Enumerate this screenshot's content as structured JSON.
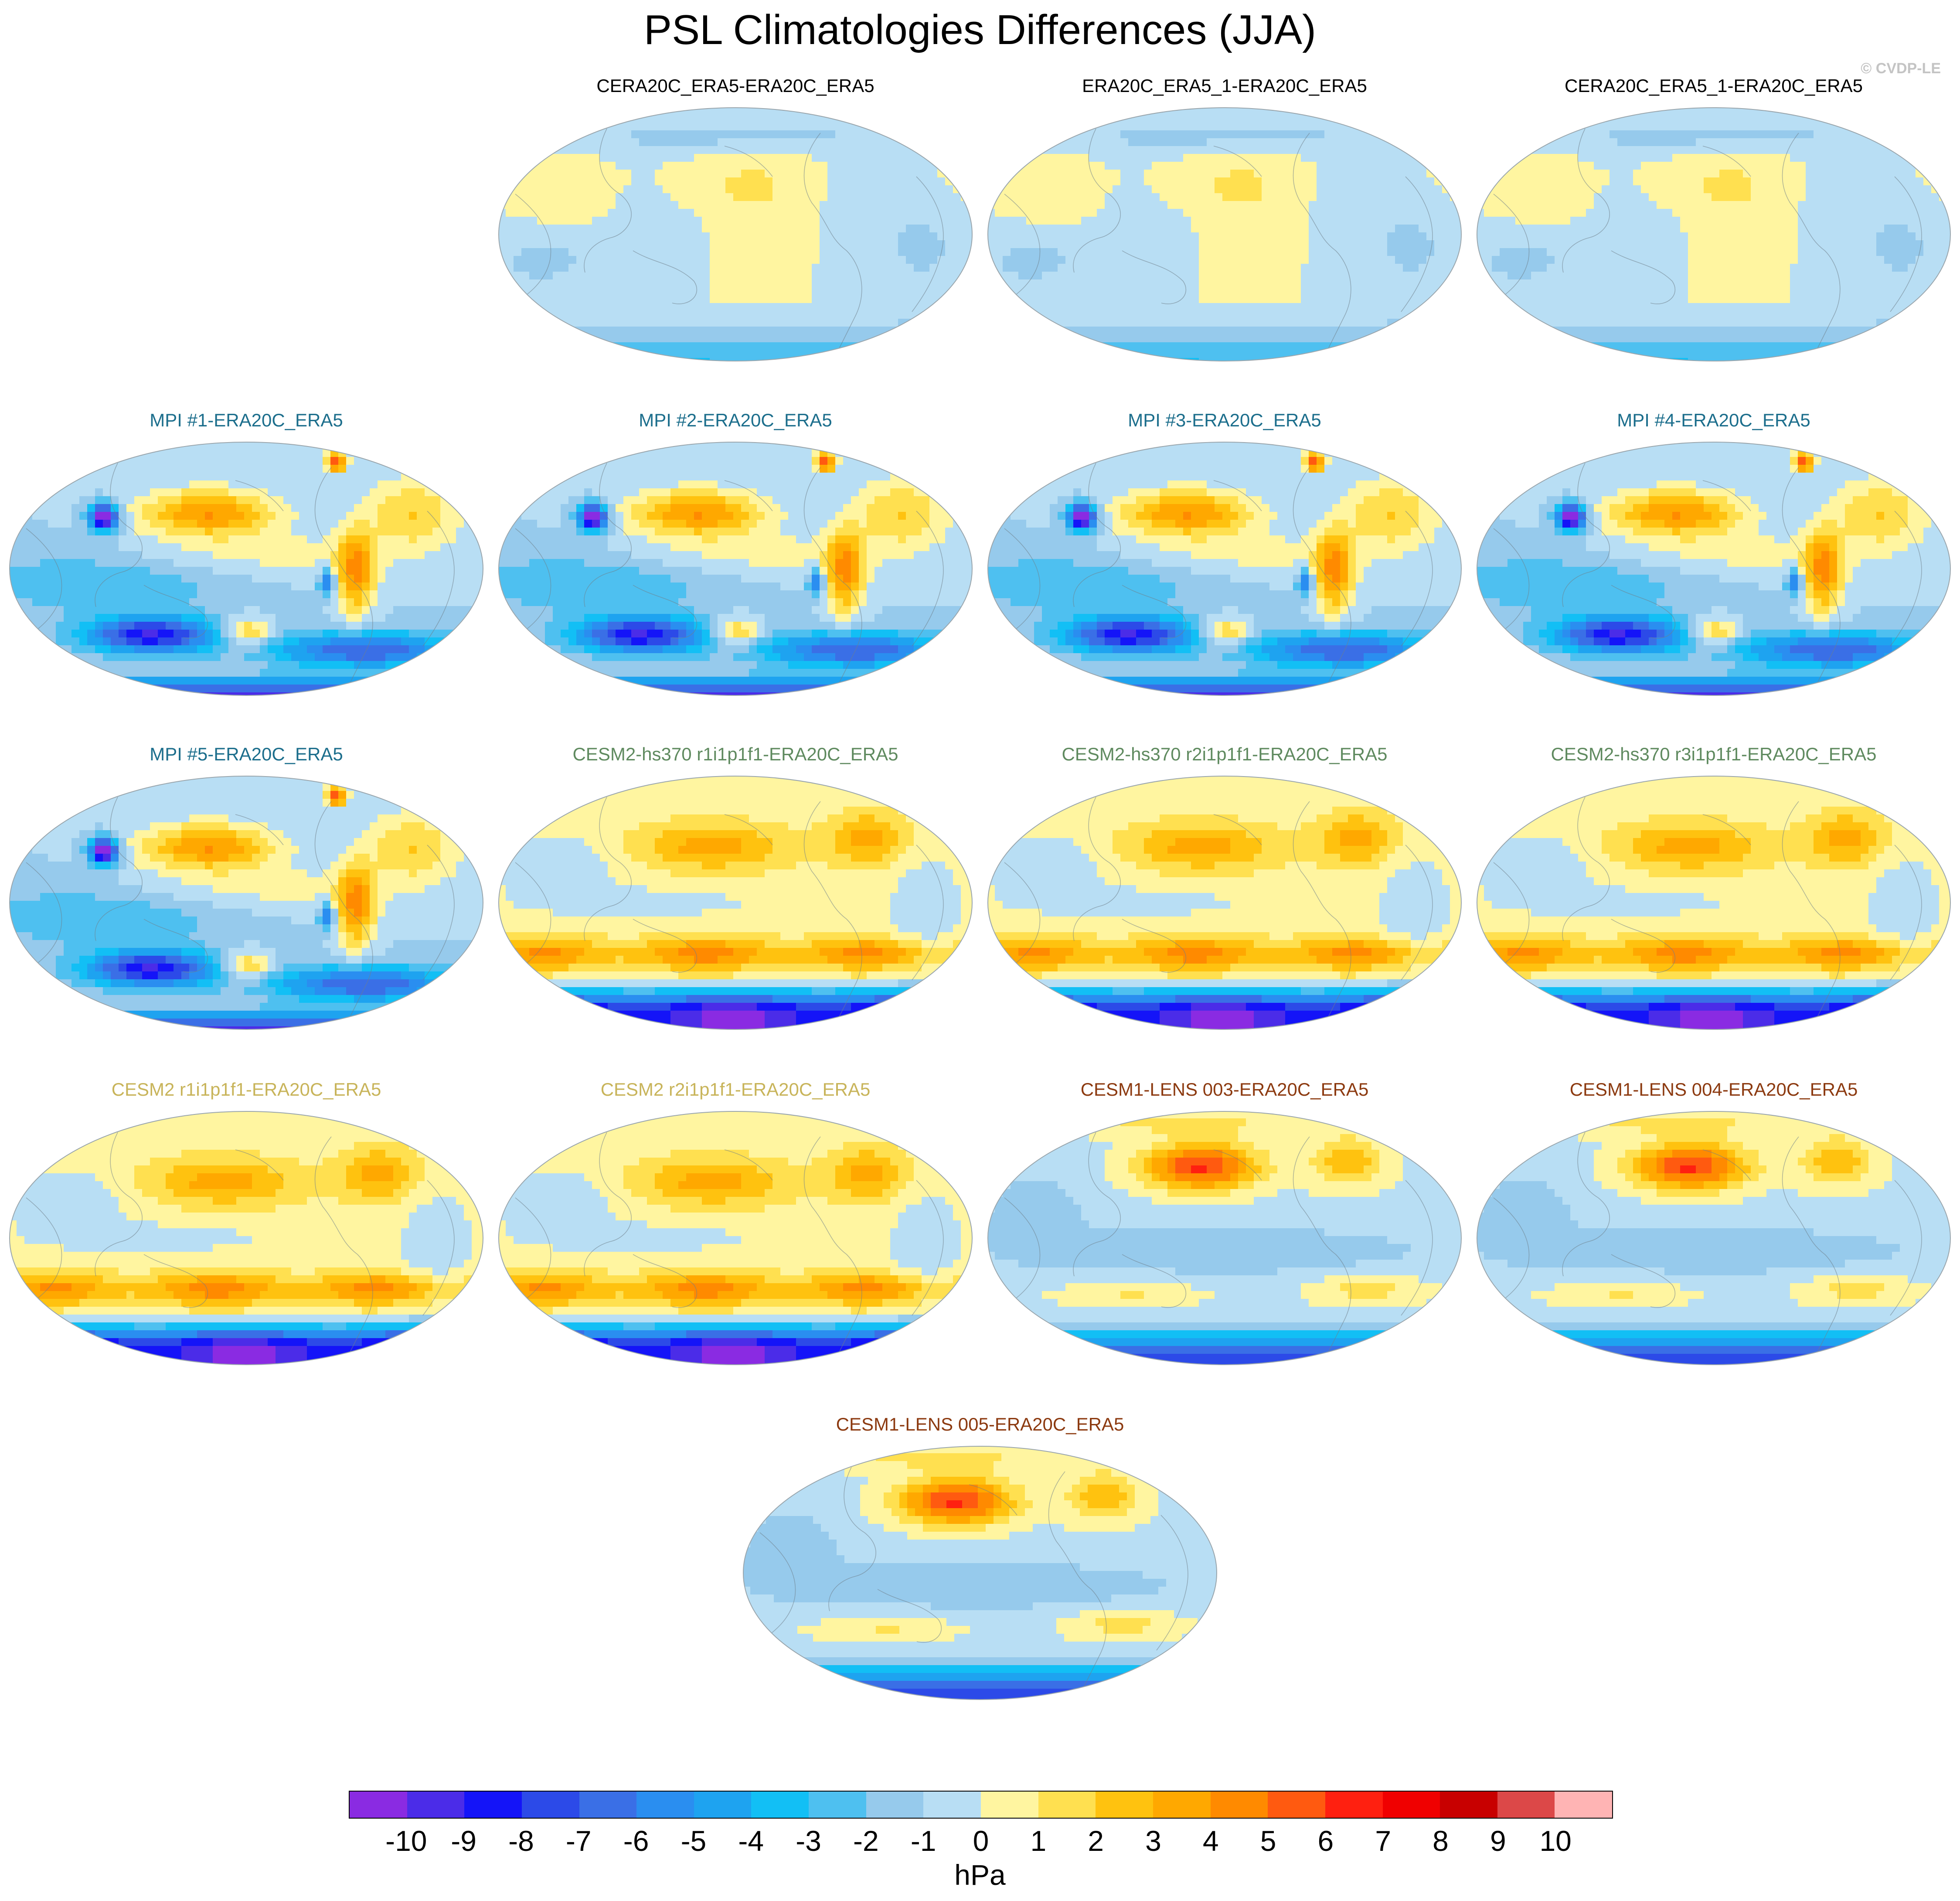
{
  "chart_data": {
    "type": "heatmap",
    "title": "PSL Climatologies Differences (JJA)",
    "watermark": "© CVDP-LE",
    "projection": "global map, elliptical (Robinson-like), Pacific-centered",
    "colorbar": {
      "units": "hPa",
      "levels": [
        -10,
        -9,
        -8,
        -7,
        -6,
        -5,
        -4,
        -3,
        -2,
        -1,
        0,
        1,
        2,
        3,
        4,
        5,
        6,
        7,
        8,
        9,
        10
      ],
      "tick_labels": [
        "-10",
        "-9",
        "-8",
        "-7",
        "-6",
        "-5",
        "-4",
        "-3",
        "-2",
        "-1",
        "0",
        "1",
        "2",
        "3",
        "4",
        "5",
        "6",
        "7",
        "8",
        "9",
        "10"
      ],
      "colors": [
        "#8a2be2",
        "#4b2ce8",
        "#1414f8",
        "#2c4ae8",
        "#3a6fe6",
        "#2a8ef0",
        "#1ea3f0",
        "#12bff5",
        "#4ec0f0",
        "#96caec",
        "#b8def4",
        "#fff5a0",
        "#ffe050",
        "#ffc20f",
        "#ffa800",
        "#ff8a00",
        "#ff5a10",
        "#ff2010",
        "#f00000",
        "#c80000",
        "#dc4848",
        "#ffb4b4"
      ]
    },
    "panels": [
      {
        "title": "CERA20C_ERA5-ERA20C_ERA5",
        "title_color": "#000000",
        "row": 0,
        "col": 1,
        "pattern": "reanalysis_small",
        "north_high": 0,
        "south_low": 1,
        "antarctic": -3,
        "tropical": 0
      },
      {
        "title": "ERA20C_ERA5_1-ERA20C_ERA5",
        "title_color": "#000000",
        "row": 0,
        "col": 2,
        "pattern": "reanalysis_small",
        "north_high": 0,
        "south_low": 1,
        "antarctic": -3,
        "tropical": 0
      },
      {
        "title": "CERA20C_ERA5_1-ERA20C_ERA5",
        "title_color": "#000000",
        "row": 0,
        "col": 3,
        "pattern": "reanalysis_small",
        "north_high": 0,
        "south_low": 1,
        "antarctic": -3,
        "tropical": 0
      },
      {
        "title": "MPI #1-ERA20C_ERA5",
        "title_color": "#1c6e8c",
        "row": 1,
        "col": 0,
        "pattern": "mpi",
        "north_high": 5,
        "south_low": -8,
        "antarctic": -8,
        "tropical": -1
      },
      {
        "title": "MPI #2-ERA20C_ERA5",
        "title_color": "#1c6e8c",
        "row": 1,
        "col": 1,
        "pattern": "mpi",
        "north_high": 5,
        "south_low": -8,
        "antarctic": -8,
        "tropical": -1
      },
      {
        "title": "MPI #3-ERA20C_ERA5",
        "title_color": "#1c6e8c",
        "row": 1,
        "col": 2,
        "pattern": "mpi",
        "north_high": 5,
        "south_low": -8,
        "antarctic": -8,
        "tropical": -1
      },
      {
        "title": "MPI #4-ERA20C_ERA5",
        "title_color": "#1c6e8c",
        "row": 1,
        "col": 3,
        "pattern": "mpi",
        "north_high": 5,
        "south_low": -8,
        "antarctic": -8,
        "tropical": -1
      },
      {
        "title": "MPI #5-ERA20C_ERA5",
        "title_color": "#1c6e8c",
        "row": 2,
        "col": 0,
        "pattern": "mpi",
        "north_high": 5,
        "south_low": -8,
        "antarctic": -8,
        "tropical": -1
      },
      {
        "title": "CESM2-hs370 r1i1p1f1-ERA20C_ERA5",
        "title_color": "#5f8a5f",
        "row": 2,
        "col": 1,
        "pattern": "cesm2",
        "north_high": 3,
        "south_low": 3,
        "antarctic": -10,
        "tropical": 0
      },
      {
        "title": "CESM2-hs370 r2i1p1f1-ERA20C_ERA5",
        "title_color": "#5f8a5f",
        "row": 2,
        "col": 2,
        "pattern": "cesm2",
        "north_high": 3,
        "south_low": 3,
        "antarctic": -10,
        "tropical": 0
      },
      {
        "title": "CESM2-hs370 r3i1p1f1-ERA20C_ERA5",
        "title_color": "#5f8a5f",
        "row": 2,
        "col": 3,
        "pattern": "cesm2",
        "north_high": 3,
        "south_low": 3,
        "antarctic": -10,
        "tropical": 0
      },
      {
        "title": "CESM2 r1i1p1f1-ERA20C_ERA5",
        "title_color": "#c8b45a",
        "row": 3,
        "col": 0,
        "pattern": "cesm2",
        "north_high": 3,
        "south_low": 3,
        "antarctic": -10,
        "tropical": 0
      },
      {
        "title": "CESM2 r2i1p1f1-ERA20C_ERA5",
        "title_color": "#c8b45a",
        "row": 3,
        "col": 1,
        "pattern": "cesm2",
        "north_high": 3,
        "south_low": 3,
        "antarctic": -10,
        "tropical": 0
      },
      {
        "title": "CESM1-LENS 003-ERA20C_ERA5",
        "title_color": "#8c3a10",
        "row": 3,
        "col": 2,
        "pattern": "cesm1",
        "north_high": 5,
        "south_low": 1,
        "antarctic": -7,
        "tropical": -1
      },
      {
        "title": "CESM1-LENS 004-ERA20C_ERA5",
        "title_color": "#8c3a10",
        "row": 3,
        "col": 3,
        "pattern": "cesm1",
        "north_high": 5,
        "south_low": 1,
        "antarctic": -7,
        "tropical": -1
      },
      {
        "title": "CESM1-LENS 005-ERA20C_ERA5",
        "title_color": "#8c3a10",
        "row": 4,
        "col": 1.5,
        "pattern": "cesm1",
        "north_high": 5,
        "south_low": 1,
        "antarctic": -7,
        "tropical": -1
      }
    ]
  }
}
